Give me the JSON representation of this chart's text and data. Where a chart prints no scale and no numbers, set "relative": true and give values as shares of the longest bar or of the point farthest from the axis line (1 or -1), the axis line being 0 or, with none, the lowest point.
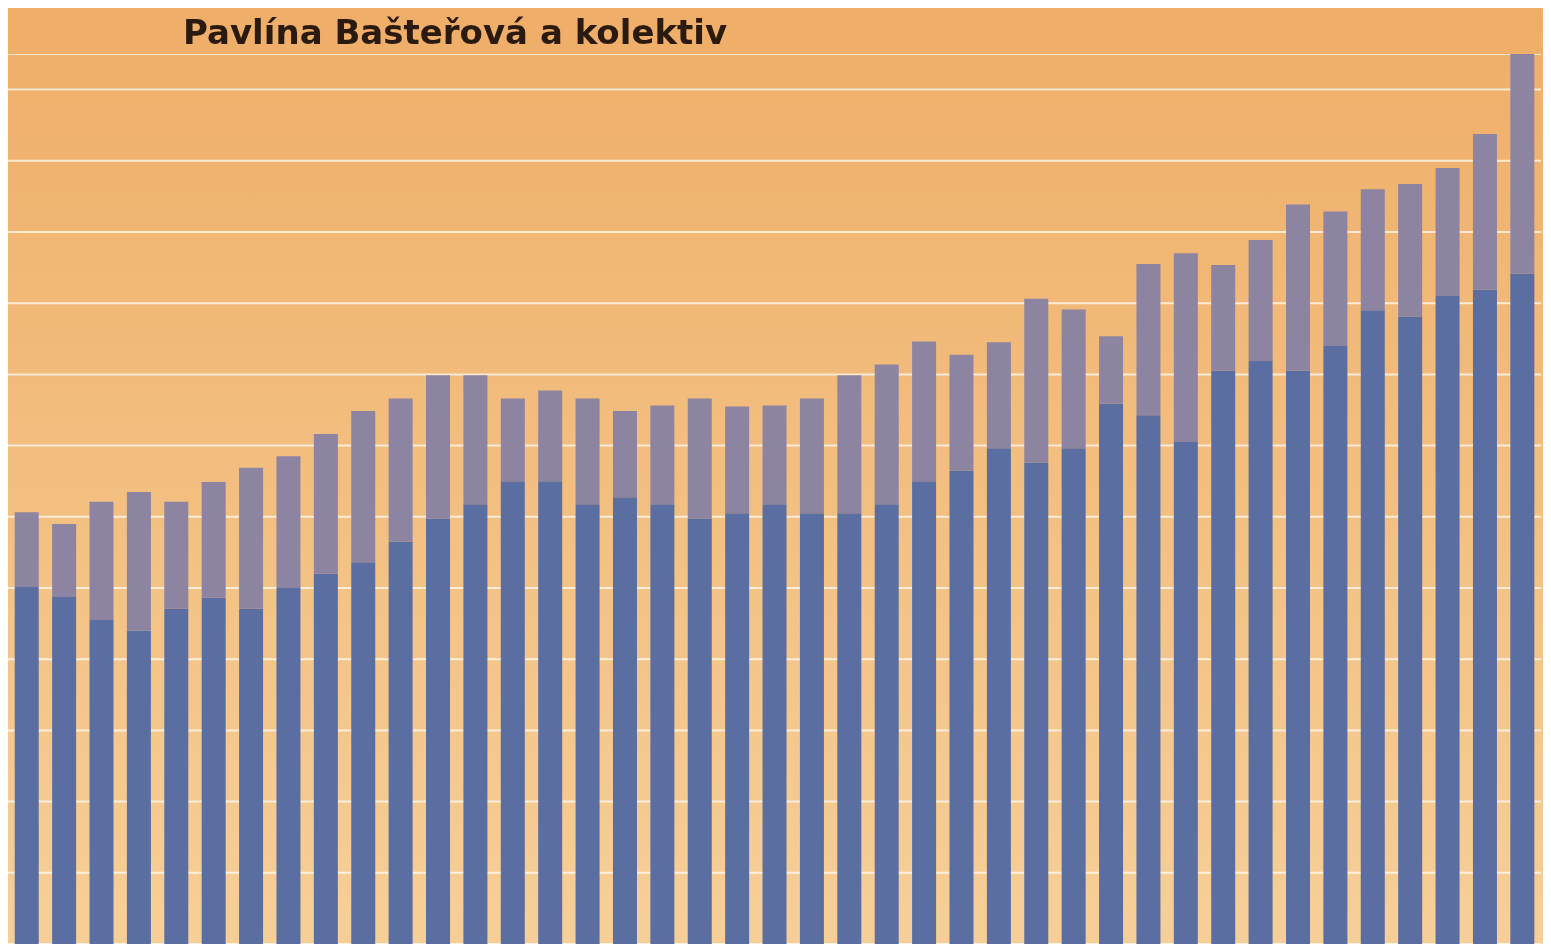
{
  "chart_data": {
    "type": "bar",
    "title": "Pavlína Bašteřová a kolektiv",
    "relative": true,
    "stacked": true,
    "grid": "y",
    "categories": [
      null,
      null,
      null,
      null,
      null,
      null,
      null,
      null,
      null,
      null,
      null,
      null,
      null,
      null,
      null,
      null,
      null,
      null,
      null,
      null,
      null,
      null,
      null,
      null,
      null,
      null,
      null,
      null,
      null,
      null,
      null,
      null,
      null,
      null,
      null,
      null,
      null,
      null,
      null,
      null,
      null
    ],
    "series": [
      {
        "color": "#5a6ea2",
        "values": [
          0.401,
          0.39,
          0.364,
          0.352,
          0.377,
          0.389,
          0.377,
          0.4,
          0.416,
          0.429,
          0.452,
          0.478,
          0.494,
          0.52,
          0.52,
          0.494,
          0.502,
          0.494,
          0.478,
          0.484,
          0.494,
          0.484,
          0.484,
          0.494,
          0.52,
          0.532,
          0.557,
          0.541,
          0.557,
          0.607,
          0.594,
          0.564,
          0.644,
          0.655,
          0.644,
          0.672,
          0.712,
          0.705,
          0.728,
          0.735,
          0.753
        ]
      },
      {
        "color": "#8c84a0",
        "values": [
          0.084,
          0.082,
          0.133,
          0.156,
          0.12,
          0.13,
          0.158,
          0.148,
          0.157,
          0.17,
          0.161,
          0.161,
          0.145,
          0.093,
          0.102,
          0.119,
          0.097,
          0.111,
          0.135,
          0.12,
          0.111,
          0.129,
          0.155,
          0.157,
          0.157,
          0.13,
          0.119,
          0.184,
          0.156,
          0.076,
          0.17,
          0.212,
          0.119,
          0.136,
          0.187,
          0.151,
          0.136,
          0.149,
          0.144,
          0.175,
          0.247
        ]
      }
    ]
  }
}
